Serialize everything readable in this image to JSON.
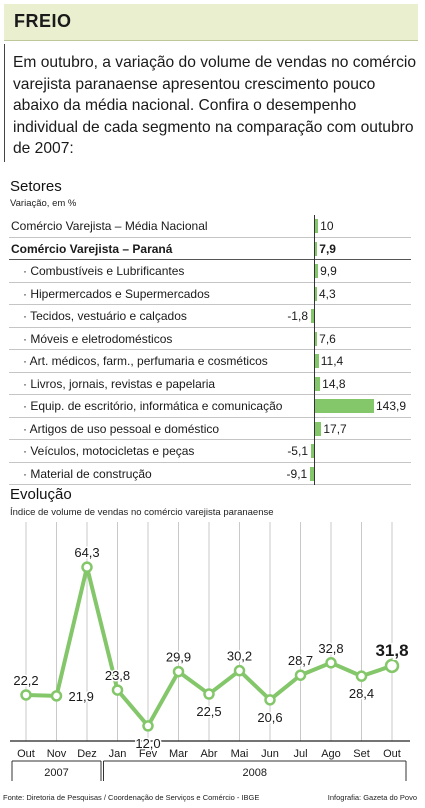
{
  "header": {
    "title": "FREIO"
  },
  "intro": "Em outubro, a variação do volume de vendas no comércio varejista paranaense apresentou crescimento pouco abaixo da média nacional. Confira o desempenho individual de cada segmento na comparação com outubro de 2007:",
  "sectors": {
    "title": "Setores",
    "subtitle": "Variação, em %",
    "bar_color": "#84c76a",
    "rows": [
      {
        "label": "Comércio Varejista – Média Nacional",
        "value": 10,
        "display": "10",
        "style": "normal"
      },
      {
        "label": "Comércio Varejista – Paraná",
        "value": 7.9,
        "display": "7,9",
        "style": "bold"
      },
      {
        "label": "· Combustíveis e Lubrificantes",
        "value": 9.9,
        "display": "9,9",
        "style": "sub"
      },
      {
        "label": "· Hipermercados e Supermercados",
        "value": 4.3,
        "display": "4,3",
        "style": "sub"
      },
      {
        "label": "· Tecidos, vestuário e calçados",
        "value": -1.8,
        "display": "-1,8",
        "style": "sub"
      },
      {
        "label": "· Móveis e eletrodomésticos",
        "value": 7.6,
        "display": "7,6",
        "style": "sub"
      },
      {
        "label": "· Art. médicos, farm., perfumaria e cosméticos",
        "value": 11.4,
        "display": "11,4",
        "style": "sub"
      },
      {
        "label": "· Livros, jornais, revistas e papelaria",
        "value": 14.8,
        "display": "14,8",
        "style": "sub"
      },
      {
        "label": "· Equip. de escritório, informática e comunicação",
        "value": 143.9,
        "display": "143,9",
        "style": "sub"
      },
      {
        "label": "· Artigos de uso pessoal e doméstico",
        "value": 17.7,
        "display": "17,7",
        "style": "sub"
      },
      {
        "label": "· Veículos, motocicletas e peças",
        "value": -5.1,
        "display": "-5,1",
        "style": "sub"
      },
      {
        "label": "· Material de construção",
        "value": -9.1,
        "display": "-9,1",
        "style": "sub"
      }
    ]
  },
  "evolution": {
    "title": "Evolução",
    "subtitle": "Índice de volume de vendas no comércio varejista paranaense"
  },
  "chart_data": {
    "type": "line",
    "x": [
      "Out",
      "Nov",
      "Dez",
      "Jan",
      "Fev",
      "Mar",
      "Abr",
      "Mai",
      "Jun",
      "Jul",
      "Ago",
      "Set",
      "Out"
    ],
    "values": [
      22.2,
      21.9,
      64.3,
      23.8,
      12.0,
      29.9,
      22.5,
      30.2,
      20.6,
      28.7,
      32.8,
      28.4,
      31.8
    ],
    "value_labels": [
      "22,2",
      "21,9",
      "64,3",
      "23,8",
      "12,0",
      "29,9",
      "22,5",
      "30,2",
      "20,6",
      "28,7",
      "32,8",
      "28,4",
      "31,8"
    ],
    "year_groups": [
      {
        "label": "2007",
        "start": 0,
        "end": 2
      },
      {
        "label": "2008",
        "start": 3,
        "end": 12
      }
    ],
    "line_color": "#84c76a",
    "marker_fill": "#ffffff",
    "gridlines": true
  },
  "footer": {
    "source": "Fonte: Diretoria de Pesquisas / Coordenação de Serviços e Comércio - IBGE",
    "credit": "Infografia: Gazeta do Povo"
  }
}
